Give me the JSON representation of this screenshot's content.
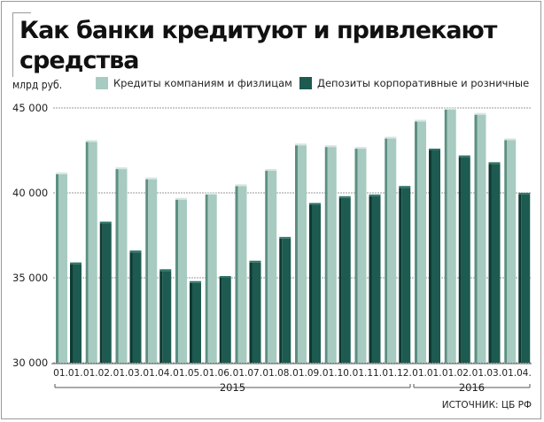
{
  "title": "Как банки кредитуют и привлекают средства",
  "source": "ИСТОЧНИК: ЦБ РФ",
  "colors": {
    "loans": "#a8cbc1",
    "loans_dark": "#5c8f82",
    "deposits": "#1d5a50",
    "deposits_dark": "#0e3a33",
    "grid": "#999999"
  },
  "chart_data": {
    "type": "bar",
    "ylabel": "млрд руб.",
    "ylim": [
      30000,
      45000
    ],
    "yticks": [
      "30 000",
      "35 000",
      "40 000",
      "45 000"
    ],
    "ytick_values": [
      30000,
      35000,
      40000,
      45000
    ],
    "categories": [
      "01.01.",
      "01.02.",
      "01.03.",
      "01.04.",
      "01.05.",
      "01.06.",
      "01.07.",
      "01.08.",
      "01.09.",
      "01.10.",
      "01.11.",
      "01.12.",
      "01.01.",
      "01.02.",
      "01.03.",
      "01.04."
    ],
    "year_labels": [
      {
        "label": "2015",
        "start": 0,
        "end": 11
      },
      {
        "label": "2016",
        "start": 12,
        "end": 15
      }
    ],
    "series": [
      {
        "name": "Кредиты компаниям и физлицам",
        "values": [
          41100,
          43000,
          41400,
          40800,
          39600,
          39900,
          40400,
          41300,
          42800,
          42700,
          42600,
          43200,
          44200,
          44900,
          44600,
          43100
        ]
      },
      {
        "name": "Депозиты корпоративные и розничные",
        "values": [
          35800,
          38200,
          36500,
          35400,
          34700,
          35000,
          35900,
          37300,
          39300,
          39700,
          39800,
          40300,
          42500,
          42100,
          41700,
          39900
        ]
      }
    ],
    "grid": true,
    "legend": "top"
  }
}
